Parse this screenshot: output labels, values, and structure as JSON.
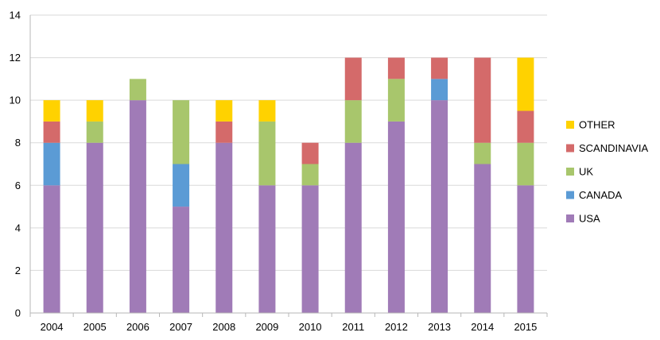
{
  "chart_data": {
    "type": "bar",
    "stacked": true,
    "title": "",
    "xlabel": "",
    "ylabel": "",
    "ylim": [
      0,
      14
    ],
    "yticks": [
      0,
      2,
      4,
      6,
      8,
      10,
      12,
      14
    ],
    "grid": true,
    "legend_position": "right",
    "categories": [
      "2004",
      "2005",
      "2006",
      "2007",
      "2008",
      "2009",
      "2010",
      "2011",
      "2012",
      "2013",
      "2014",
      "2015"
    ],
    "series": [
      {
        "name": "USA",
        "color": "#A07BB7",
        "values": [
          6,
          8,
          10,
          5,
          8,
          6,
          6,
          8,
          9,
          10,
          7,
          6
        ]
      },
      {
        "name": "CANADA",
        "color": "#5B9BD5",
        "values": [
          2,
          0,
          0,
          2,
          0,
          0,
          0,
          0,
          0,
          1,
          0,
          0
        ]
      },
      {
        "name": "UK",
        "color": "#A8C66C",
        "values": [
          0,
          1,
          1,
          3,
          0,
          3,
          1,
          2,
          2,
          0,
          1,
          2
        ]
      },
      {
        "name": "SCANDINAVIA",
        "color": "#D46A6A",
        "values": [
          1,
          0,
          0,
          0,
          1,
          0,
          1,
          2,
          1,
          1,
          4,
          1.5
        ]
      },
      {
        "name": "OTHER",
        "color": "#FFD200",
        "values": [
          1,
          1,
          0,
          0,
          1,
          1,
          0,
          0,
          0,
          0,
          0,
          2.5
        ]
      }
    ],
    "legend_order": [
      "OTHER",
      "SCANDINAVIA",
      "UK",
      "CANADA",
      "USA"
    ]
  }
}
